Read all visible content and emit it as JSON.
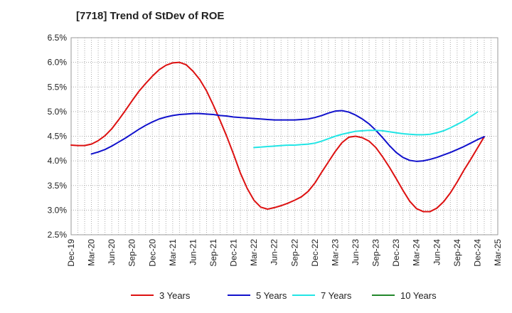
{
  "chart_data": {
    "type": "line",
    "title": "[7718]  Trend of StDev of ROE",
    "xlabel": "",
    "ylabel": "",
    "x_ticks": [
      "Dec-19",
      "Mar-20",
      "Jun-20",
      "Sep-20",
      "Dec-20",
      "Mar-21",
      "Jun-21",
      "Sep-21",
      "Dec-21",
      "Mar-22",
      "Jun-22",
      "Sep-22",
      "Dec-22",
      "Mar-23",
      "Jun-23",
      "Sep-23",
      "Dec-23",
      "Mar-24",
      "Jun-24",
      "Sep-24",
      "Dec-24",
      "Mar-25"
    ],
    "y_ticks": [
      "2.5%",
      "3.0%",
      "3.5%",
      "4.0%",
      "4.5%",
      "5.0%",
      "5.5%",
      "6.0%",
      "6.5%"
    ],
    "ylim": [
      2.5,
      6.5
    ],
    "y_unit": "%",
    "grid": "dotted",
    "legend_position": "bottom",
    "series": [
      {
        "name": "3 Years",
        "color": "#dd1111",
        "start_index": 0,
        "values": [
          4.32,
          4.31,
          4.31,
          4.34,
          4.41,
          4.51,
          4.65,
          4.83,
          5.02,
          5.22,
          5.41,
          5.57,
          5.72,
          5.85,
          5.94,
          5.99,
          6.0,
          5.95,
          5.82,
          5.65,
          5.42,
          5.13,
          4.82,
          4.49,
          4.13,
          3.75,
          3.44,
          3.2,
          3.06,
          3.02,
          3.05,
          3.09,
          3.14,
          3.2,
          3.27,
          3.38,
          3.55,
          3.77,
          3.98,
          4.19,
          4.37,
          4.48,
          4.5,
          4.47,
          4.4,
          4.27,
          4.08,
          3.87,
          3.64,
          3.4,
          3.18,
          3.03,
          2.97,
          2.97,
          3.04,
          3.17,
          3.35,
          3.57,
          3.81,
          4.03,
          4.26,
          4.49
        ]
      },
      {
        "name": "5 Years",
        "color": "#1111cc",
        "start_index": 3,
        "values": [
          4.14,
          4.18,
          4.23,
          4.3,
          4.38,
          4.46,
          4.55,
          4.64,
          4.72,
          4.79,
          4.85,
          4.89,
          4.92,
          4.94,
          4.95,
          4.96,
          4.96,
          4.95,
          4.94,
          4.92,
          4.91,
          4.89,
          4.88,
          4.87,
          4.86,
          4.85,
          4.84,
          4.83,
          4.83,
          4.83,
          4.83,
          4.84,
          4.85,
          4.88,
          4.92,
          4.97,
          5.01,
          5.02,
          4.99,
          4.93,
          4.85,
          4.75,
          4.62,
          4.47,
          4.31,
          4.17,
          4.07,
          4.01,
          3.99,
          4.0,
          4.03,
          4.07,
          4.12,
          4.17,
          4.23,
          4.29,
          4.36,
          4.43,
          4.49
        ]
      },
      {
        "name": "7 Years",
        "color": "#22e5e5",
        "start_index": 27,
        "values": [
          4.27,
          4.28,
          4.29,
          4.3,
          4.31,
          4.32,
          4.32,
          4.33,
          4.34,
          4.36,
          4.4,
          4.45,
          4.5,
          4.54,
          4.57,
          4.6,
          4.61,
          4.62,
          4.62,
          4.61,
          4.59,
          4.57,
          4.55,
          4.54,
          4.53,
          4.53,
          4.54,
          4.57,
          4.61,
          4.67,
          4.74,
          4.81,
          4.9,
          4.99
        ]
      },
      {
        "name": "10 Years",
        "color": "#22882b",
        "start_index": 0,
        "values": []
      }
    ]
  }
}
